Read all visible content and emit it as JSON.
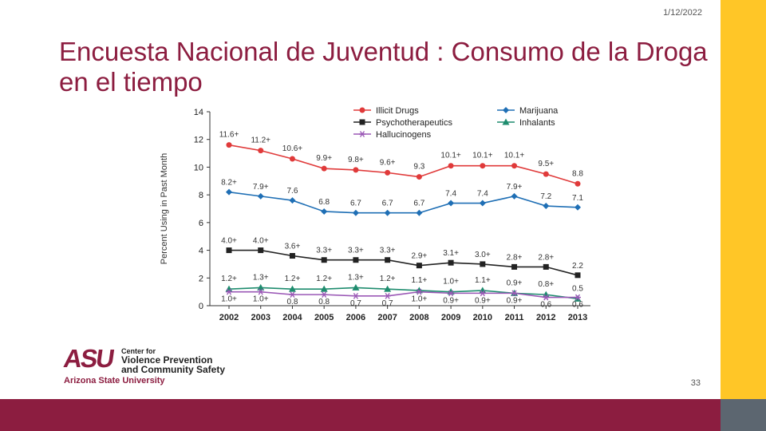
{
  "slide": {
    "date": "1/12/2022",
    "title": "Encuesta Nacional de Juventud : Consumo de la Droga en el tiempo",
    "page_number": "33"
  },
  "logo": {
    "mark": "ASU",
    "center_line1": "Center for",
    "center_line2": "Violence Prevention",
    "center_line3": "and Community Safety",
    "university": "Arizona State University"
  },
  "colors": {
    "maroon": "#8C1D40",
    "gold": "#FFC627",
    "gray": "#5C6670"
  },
  "chart_data": {
    "type": "line",
    "title": "",
    "xlabel": "",
    "ylabel": "Percent Using in Past Month",
    "ylim": [
      0,
      14
    ],
    "yticks": [
      0,
      2,
      4,
      6,
      8,
      10,
      12,
      14
    ],
    "categories": [
      "2002",
      "2003",
      "2004",
      "2005",
      "2006",
      "2007",
      "2008",
      "2009",
      "2010",
      "2011",
      "2012",
      "2013"
    ],
    "legend_position": "top",
    "series": [
      {
        "name": "Illicit Drugs",
        "color": "#E03A3A",
        "marker": "circle",
        "values": [
          11.6,
          11.2,
          10.6,
          9.9,
          9.8,
          9.6,
          9.3,
          10.1,
          10.1,
          10.1,
          9.5,
          8.8
        ],
        "labels": [
          "11.6+",
          "11.2+",
          "10.6+",
          "9.9+",
          "9.8+",
          "9.6+",
          "9.3",
          "10.1+",
          "10.1+",
          "10.1+",
          "9.5+",
          "8.8"
        ]
      },
      {
        "name": "Marijuana",
        "color": "#1F6FB5",
        "marker": "diamond",
        "values": [
          8.2,
          7.9,
          7.6,
          6.8,
          6.7,
          6.7,
          6.7,
          7.4,
          7.4,
          7.9,
          7.2,
          7.1
        ],
        "labels": [
          "8.2+",
          "7.9+",
          "7.6",
          "6.8",
          "6.7",
          "6.7",
          "6.7",
          "7.4",
          "7.4",
          "7.9+",
          "7.2",
          "7.1"
        ]
      },
      {
        "name": "Psychotherapeutics",
        "color": "#222222",
        "marker": "square",
        "values": [
          4.0,
          4.0,
          3.6,
          3.3,
          3.3,
          3.3,
          2.9,
          3.1,
          3.0,
          2.8,
          2.8,
          2.2
        ],
        "labels": [
          "4.0+",
          "4.0+",
          "3.6+",
          "3.3+",
          "3.3+",
          "3.3+",
          "2.9+",
          "3.1+",
          "3.0+",
          "2.8+",
          "2.8+",
          "2.2"
        ]
      },
      {
        "name": "Inhalants",
        "color": "#1E8C6E",
        "marker": "triangle",
        "values": [
          1.2,
          1.3,
          1.2,
          1.2,
          1.3,
          1.2,
          1.1,
          1.0,
          1.1,
          0.9,
          0.8,
          0.5
        ],
        "labels": [
          "1.2+",
          "1.3+",
          "1.2+",
          "1.2+",
          "1.3+",
          "1.2+",
          "1.1+",
          "1.0+",
          "1.1+",
          "0.9+",
          "0.8+",
          "0.5"
        ]
      },
      {
        "name": "Hallucinogens",
        "color": "#9B59B6",
        "marker": "star",
        "values": [
          1.0,
          1.0,
          0.8,
          0.8,
          0.7,
          0.7,
          1.0,
          0.9,
          0.9,
          0.9,
          0.6,
          0.6
        ],
        "labels": [
          "1.0+",
          "1.0+",
          "0.8",
          "0.8",
          "0.7",
          "0.7",
          "1.0+",
          "0.9+",
          "0.9+",
          "0.9+",
          "0.6",
          "0.6"
        ]
      }
    ]
  }
}
